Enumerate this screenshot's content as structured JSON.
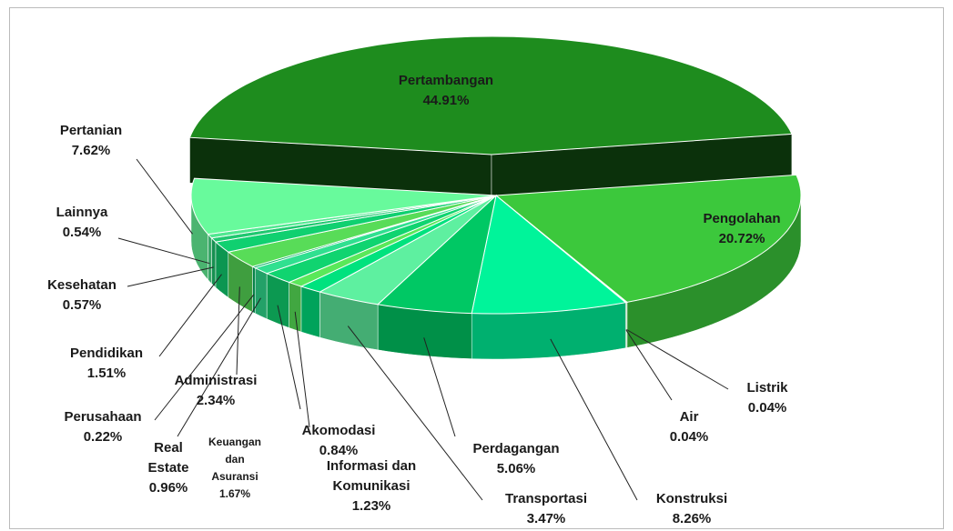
{
  "chart_data": {
    "type": "pie",
    "categories": [
      "Pertambangan",
      "Pengolahan",
      "Listrik",
      "Air",
      "Konstruksi",
      "Perdagangan",
      "Transportasi",
      "Informasi dan Komunikasi",
      "Akomodasi",
      "Keuangan dan Asuransi",
      "Real Estate",
      "Perusahaan",
      "Administrasi",
      "Pendidikan",
      "Kesehatan",
      "Lainnya",
      "Pertanian"
    ],
    "values": [
      44.91,
      20.72,
      0.04,
      0.04,
      8.26,
      5.06,
      3.47,
      1.23,
      0.84,
      1.67,
      0.96,
      0.22,
      2.34,
      1.51,
      0.57,
      0.54,
      7.62
    ],
    "value_labels": [
      "44.91%",
      "20.72%",
      "0.04%",
      "0.04%",
      "8.26%",
      "5.06%",
      "3.47%",
      "1.23%",
      "0.84%",
      "1.67%",
      "0.96%",
      "0.22%",
      "2.34%",
      "1.51%",
      "0.57%",
      "0.54%",
      "7.62%"
    ],
    "colors": [
      "#1e8c1e",
      "#3cc83c",
      "#30d060",
      "#30d060",
      "#00f49a",
      "#00c864",
      "#5ef0a0",
      "#00e27e",
      "#5ae85a",
      "#10d470",
      "#30e090",
      "#00b060",
      "#58dc58",
      "#10d070",
      "#20c870",
      "#50e890",
      "#68fa9c"
    ]
  }
}
